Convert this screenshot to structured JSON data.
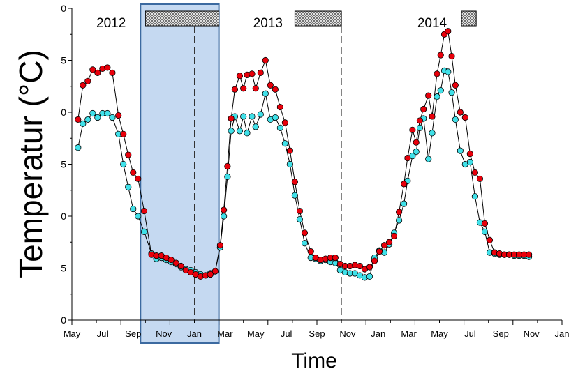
{
  "chart_data": {
    "type": "line",
    "title": "",
    "xlabel": "Time",
    "ylabel": "Temperatur (°C)",
    "x_ticks": [
      "May",
      "Jul",
      "Sep",
      "Nov",
      "Jan",
      "Mar",
      "May",
      "Jul",
      "Sep",
      "Nov",
      "Jan",
      "Mar",
      "May",
      "Jul",
      "Sep",
      "Nov",
      "Jan"
    ],
    "x_range_months": [
      0,
      20
    ],
    "ylim": [
      0,
      30
    ],
    "y_ticks_visible": [
      "0",
      "5",
      "0",
      "5",
      "0",
      "5",
      "0"
    ],
    "grid": false,
    "year_labels": [
      "2012",
      "2013",
      "2014"
    ],
    "marker_colors": {
      "red": "#e8000b",
      "cyan": "#40e0e8",
      "highlight": "#c5d9f1",
      "highlight_border": "#3c6aa0"
    },
    "series": [
      {
        "marker": "red",
        "points": [
          [
            0.25,
            19.3
          ],
          [
            0.45,
            22.6
          ],
          [
            0.65,
            23.0
          ],
          [
            0.85,
            24.1
          ],
          [
            1.05,
            23.8
          ],
          [
            1.25,
            24.2
          ],
          [
            1.45,
            24.3
          ],
          [
            1.65,
            23.8
          ],
          [
            1.9,
            19.7
          ],
          [
            2.1,
            17.9
          ],
          [
            2.3,
            15.9
          ],
          [
            2.5,
            14.2
          ],
          [
            2.7,
            13.6
          ],
          [
            2.95,
            10.5
          ],
          [
            3.25,
            6.3
          ],
          [
            3.45,
            6.2
          ],
          [
            3.65,
            6.2
          ],
          [
            3.85,
            6.0
          ],
          [
            4.05,
            5.8
          ],
          [
            4.25,
            5.5
          ],
          [
            4.45,
            5.2
          ],
          [
            4.65,
            4.8
          ],
          [
            4.85,
            4.6
          ],
          [
            5.05,
            4.4
          ],
          [
            5.25,
            4.2
          ],
          [
            5.45,
            4.3
          ],
          [
            5.65,
            4.4
          ],
          [
            5.85,
            4.7
          ],
          [
            6.05,
            7.2
          ],
          [
            6.2,
            10.6
          ],
          [
            6.35,
            14.8
          ],
          [
            6.5,
            19.4
          ],
          [
            6.65,
            22.2
          ],
          [
            6.85,
            23.5
          ],
          [
            7.0,
            22.3
          ],
          [
            7.15,
            23.6
          ],
          [
            7.35,
            23.7
          ],
          [
            7.5,
            22.3
          ],
          [
            7.7,
            23.8
          ],
          [
            7.9,
            25.0
          ],
          [
            8.1,
            22.6
          ],
          [
            8.3,
            22.2
          ],
          [
            8.5,
            20.5
          ],
          [
            8.7,
            19.0
          ],
          [
            8.9,
            16.3
          ],
          [
            9.1,
            13.3
          ],
          [
            9.3,
            10.5
          ],
          [
            9.5,
            8.4
          ],
          [
            9.75,
            6.6
          ],
          [
            9.95,
            6.0
          ],
          [
            10.15,
            5.8
          ],
          [
            10.35,
            5.9
          ],
          [
            10.55,
            6.0
          ],
          [
            10.75,
            6.0
          ],
          [
            10.95,
            5.4
          ],
          [
            11.15,
            5.2
          ],
          [
            11.35,
            5.2
          ],
          [
            11.55,
            5.3
          ],
          [
            11.75,
            5.2
          ],
          [
            11.95,
            4.9
          ],
          [
            12.15,
            5.1
          ],
          [
            12.35,
            5.7
          ],
          [
            12.55,
            6.6
          ],
          [
            12.75,
            7.2
          ],
          [
            12.95,
            7.5
          ],
          [
            13.15,
            8.1
          ],
          [
            13.35,
            10.4
          ],
          [
            13.55,
            13.1
          ],
          [
            13.7,
            15.6
          ],
          [
            13.9,
            18.3
          ],
          [
            14.05,
            17.1
          ],
          [
            14.2,
            19.2
          ],
          [
            14.35,
            20.3
          ],
          [
            14.55,
            21.6
          ],
          [
            14.7,
            19.6
          ],
          [
            14.9,
            23.7
          ],
          [
            15.05,
            25.5
          ],
          [
            15.2,
            27.5
          ],
          [
            15.35,
            27.8
          ],
          [
            15.5,
            25.4
          ],
          [
            15.65,
            22.6
          ],
          [
            15.85,
            20.0
          ],
          [
            16.05,
            19.5
          ],
          [
            16.25,
            16.0
          ],
          [
            16.45,
            14.2
          ],
          [
            16.65,
            13.6
          ],
          [
            16.85,
            9.3
          ],
          [
            17.05,
            7.7
          ],
          [
            17.25,
            6.5
          ],
          [
            17.45,
            6.4
          ],
          [
            17.65,
            6.3
          ],
          [
            17.85,
            6.3
          ],
          [
            18.05,
            6.3
          ],
          [
            18.25,
            6.3
          ],
          [
            18.45,
            6.3
          ],
          [
            18.65,
            6.3
          ]
        ]
      },
      {
        "marker": "cyan",
        "points": [
          [
            0.25,
            16.6
          ],
          [
            0.45,
            18.9
          ],
          [
            0.65,
            19.3
          ],
          [
            0.85,
            19.9
          ],
          [
            1.05,
            19.5
          ],
          [
            1.25,
            19.9
          ],
          [
            1.45,
            19.9
          ],
          [
            1.65,
            19.5
          ],
          [
            1.9,
            17.9
          ],
          [
            2.1,
            15.0
          ],
          [
            2.3,
            12.8
          ],
          [
            2.5,
            10.7
          ],
          [
            2.7,
            10.0
          ],
          [
            2.95,
            8.5
          ],
          [
            3.25,
            6.4
          ],
          [
            3.45,
            5.9
          ],
          [
            3.65,
            6.0
          ],
          [
            3.85,
            5.8
          ],
          [
            4.05,
            5.6
          ],
          [
            4.25,
            5.4
          ],
          [
            4.45,
            5.1
          ],
          [
            4.65,
            4.9
          ],
          [
            4.85,
            4.8
          ],
          [
            5.05,
            4.6
          ],
          [
            5.25,
            4.4
          ],
          [
            5.45,
            4.3
          ],
          [
            5.65,
            4.5
          ],
          [
            5.85,
            4.7
          ],
          [
            6.05,
            7.0
          ],
          [
            6.2,
            10.0
          ],
          [
            6.35,
            13.8
          ],
          [
            6.5,
            18.2
          ],
          [
            6.65,
            19.6
          ],
          [
            6.85,
            18.2
          ],
          [
            7.0,
            19.6
          ],
          [
            7.15,
            18.0
          ],
          [
            7.35,
            19.6
          ],
          [
            7.5,
            18.6
          ],
          [
            7.7,
            19.8
          ],
          [
            7.9,
            21.8
          ],
          [
            8.1,
            19.3
          ],
          [
            8.3,
            19.5
          ],
          [
            8.5,
            18.5
          ],
          [
            8.7,
            17.0
          ],
          [
            8.9,
            15.0
          ],
          [
            9.1,
            12.0
          ],
          [
            9.3,
            9.7
          ],
          [
            9.5,
            7.4
          ],
          [
            9.75,
            6.0
          ],
          [
            9.95,
            5.9
          ],
          [
            10.15,
            5.7
          ],
          [
            10.35,
            5.8
          ],
          [
            10.55,
            5.6
          ],
          [
            10.75,
            5.5
          ],
          [
            10.95,
            4.8
          ],
          [
            11.15,
            4.6
          ],
          [
            11.35,
            4.5
          ],
          [
            11.55,
            4.5
          ],
          [
            11.75,
            4.3
          ],
          [
            11.95,
            4.1
          ],
          [
            12.15,
            4.2
          ],
          [
            12.35,
            6.0
          ],
          [
            12.55,
            6.7
          ],
          [
            12.75,
            6.5
          ],
          [
            12.95,
            7.3
          ],
          [
            13.15,
            8.4
          ],
          [
            13.35,
            9.6
          ],
          [
            13.55,
            11.2
          ],
          [
            13.7,
            13.4
          ],
          [
            13.9,
            15.8
          ],
          [
            14.05,
            16.2
          ],
          [
            14.2,
            18.5
          ],
          [
            14.35,
            19.4
          ],
          [
            14.55,
            15.5
          ],
          [
            14.7,
            18.0
          ],
          [
            14.9,
            21.5
          ],
          [
            15.05,
            22.1
          ],
          [
            15.2,
            24.0
          ],
          [
            15.35,
            23.9
          ],
          [
            15.5,
            21.9
          ],
          [
            15.65,
            19.3
          ],
          [
            15.85,
            16.3
          ],
          [
            16.05,
            15.0
          ],
          [
            16.25,
            15.2
          ],
          [
            16.45,
            11.9
          ],
          [
            16.65,
            9.4
          ],
          [
            16.85,
            8.5
          ],
          [
            17.05,
            6.5
          ],
          [
            17.25,
            6.4
          ],
          [
            17.45,
            6.3
          ],
          [
            17.65,
            6.3
          ],
          [
            17.85,
            6.3
          ],
          [
            18.05,
            6.2
          ],
          [
            18.25,
            6.2
          ],
          [
            18.45,
            6.2
          ],
          [
            18.65,
            6.1
          ]
        ]
      }
    ]
  }
}
